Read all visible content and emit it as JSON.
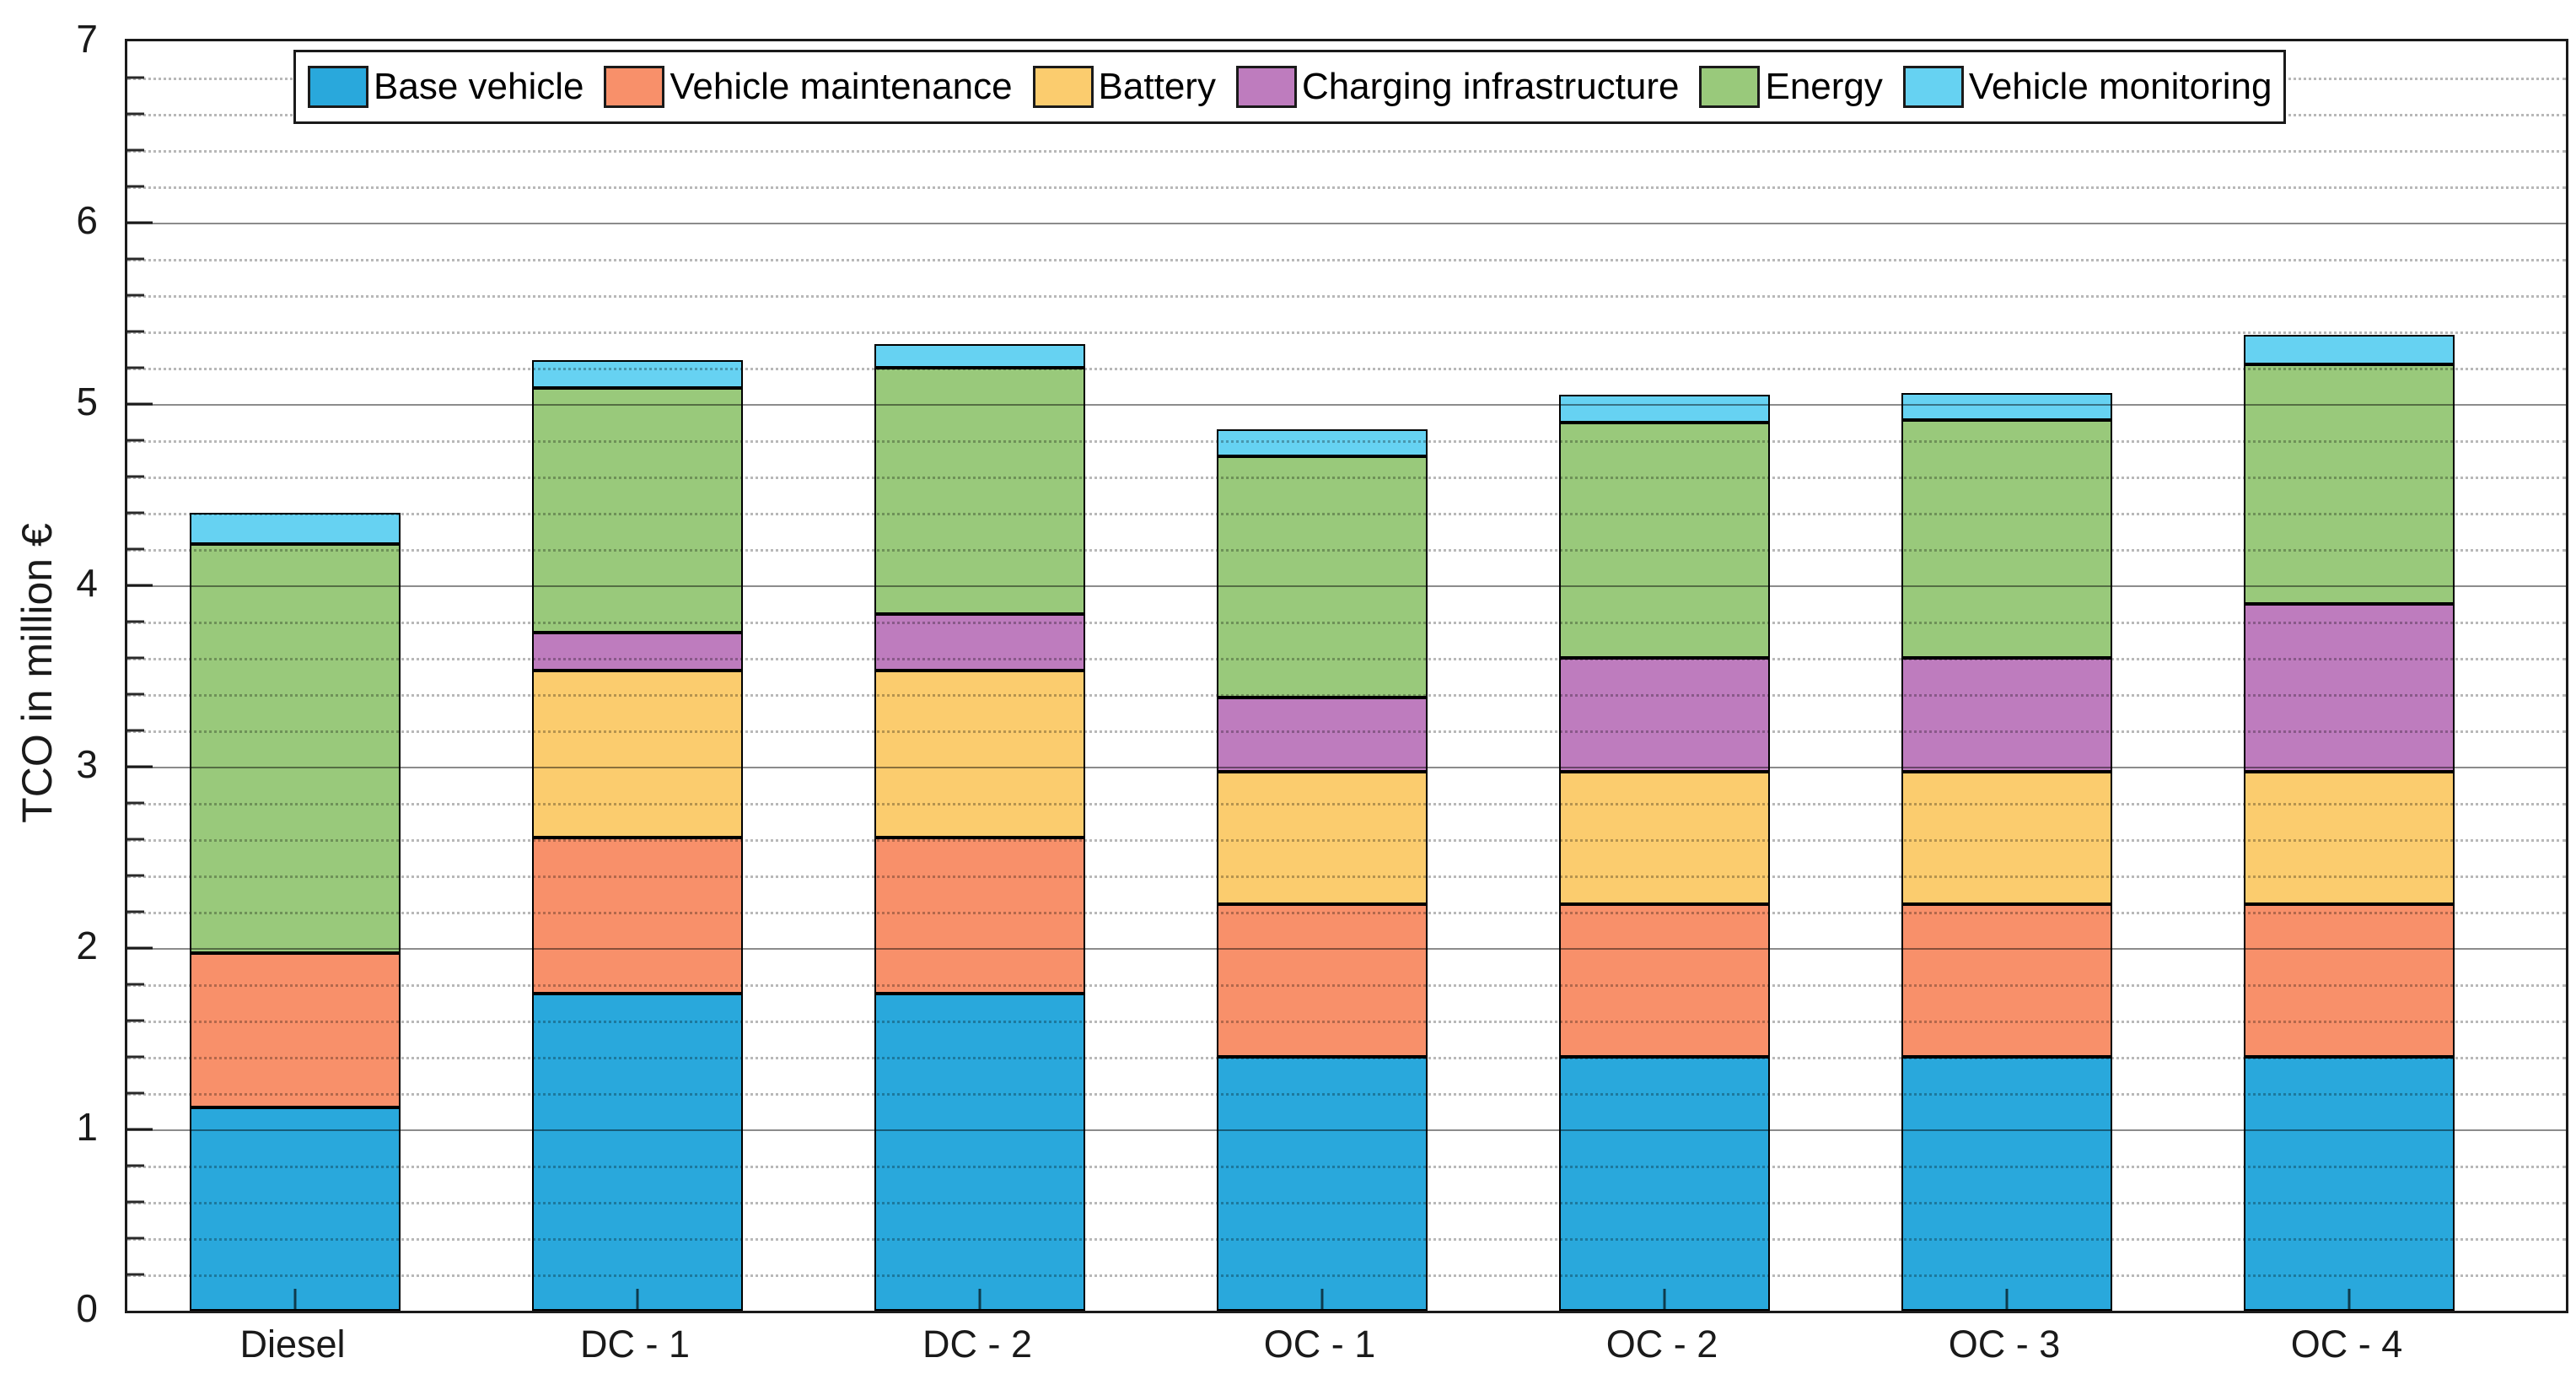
{
  "chart_data": {
    "type": "bar",
    "stacked": true,
    "title": "",
    "xlabel": "",
    "ylabel": "TCO in million €",
    "ylim": [
      0,
      7
    ],
    "yticks": [
      "0",
      "1",
      "2",
      "3",
      "4",
      "5",
      "6",
      "7"
    ],
    "minor_tick_step": 0.2,
    "grid": {
      "major": "solid",
      "minor": "dotted"
    },
    "legend_position": "top-inside",
    "categories": [
      "Diesel",
      "DC - 1",
      "DC - 2",
      "OC - 1",
      "OC - 2",
      "OC - 3",
      "OC - 4"
    ],
    "series": [
      {
        "name": "Base vehicle",
        "color": "#29A8DC",
        "values": [
          1.12,
          1.75,
          1.75,
          1.4,
          1.4,
          1.4,
          1.4
        ]
      },
      {
        "name": "Vehicle maintenance",
        "color": "#F8906A",
        "values": [
          0.85,
          0.86,
          0.86,
          0.84,
          0.84,
          0.84,
          0.84
        ]
      },
      {
        "name": "Battery",
        "color": "#FBCC6E",
        "values": [
          0.0,
          0.92,
          0.92,
          0.73,
          0.73,
          0.73,
          0.73
        ]
      },
      {
        "name": "Charging infrastructure",
        "color": "#BE7CBE",
        "values": [
          0.0,
          0.21,
          0.31,
          0.41,
          0.63,
          0.63,
          0.93
        ]
      },
      {
        "name": "Energy",
        "color": "#99C97B",
        "values": [
          2.26,
          1.35,
          1.36,
          1.33,
          1.3,
          1.31,
          1.32
        ]
      },
      {
        "name": "Vehicle monitoring",
        "color": "#66D2F2",
        "values": [
          0.17,
          0.15,
          0.13,
          0.15,
          0.15,
          0.15,
          0.16
        ]
      }
    ]
  },
  "layout_colors": {
    "axis": "#1a1a1a",
    "segment_border": "#000000",
    "background": "#ffffff"
  }
}
